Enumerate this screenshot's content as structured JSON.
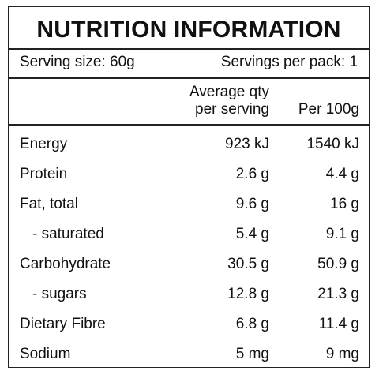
{
  "header": {
    "title": "NUTRITION INFORMATION"
  },
  "serving": {
    "size": "Serving size: 60g",
    "per_pack": "Servings per pack: 1"
  },
  "table": {
    "columns": [
      [
        "Average qty",
        "per serving"
      ],
      [
        "Per 100g"
      ]
    ],
    "rows": [
      [
        "Energy",
        "923 kJ",
        "1540 kJ"
      ],
      [
        "Protein",
        "2.6 g",
        "4.4 g"
      ],
      [
        "Fat, total",
        "9.6 g",
        "16 g"
      ],
      [
        "- saturated",
        "5.4 g",
        "9.1 g"
      ],
      [
        "Carbohydrate",
        "30.5 g",
        "50.9 g"
      ],
      [
        "- sugars",
        "12.8 g",
        "21.3 g"
      ],
      [
        "Dietary Fibre",
        "6.8 g",
        "11.4 g"
      ],
      [
        "Sodium",
        "5 mg",
        "9 mg"
      ]
    ],
    "indented": [
      3,
      5
    ]
  }
}
